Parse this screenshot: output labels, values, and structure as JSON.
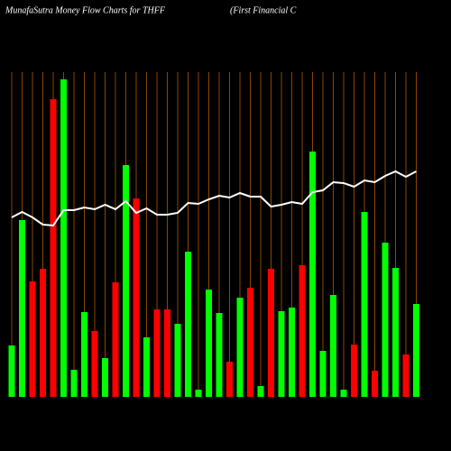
{
  "chart_data": {
    "type": "bar",
    "title": "MunafaSutra  Money Flow  Charts for THFF",
    "subtitle": "(First Financial C",
    "values": [
      57,
      196,
      128,
      142,
      330,
      352,
      30,
      94,
      73,
      43,
      127,
      257,
      220,
      66,
      97,
      97,
      81,
      161,
      8,
      119,
      93,
      39,
      110,
      121,
      12,
      142,
      95,
      99,
      146,
      272,
      51,
      113,
      8,
      58,
      205,
      29,
      171,
      143,
      47,
      103
    ],
    "colors": [
      "#00ff00",
      "#00ff00",
      "#ff0000",
      "#ff0000",
      "#ff0000",
      "#00ff00",
      "#00ff00",
      "#00ff00",
      "#ff0000",
      "#00ff00",
      "#ff0000",
      "#00ff00",
      "#ff0000",
      "#00ff00",
      "#ff0000",
      "#ff0000",
      "#00ff00",
      "#00ff00",
      "#00ff00",
      "#00ff00",
      "#00ff00",
      "#ff0000",
      "#00ff00",
      "#ff0000",
      "#00ff00",
      "#ff0000",
      "#00ff00",
      "#00ff00",
      "#ff0000",
      "#00ff00",
      "#00ff00",
      "#00ff00",
      "#00ff00",
      "#ff0000",
      "#00ff00",
      "#ff0000",
      "#00ff00",
      "#00ff00",
      "#ff0000",
      "#00ff00"
    ],
    "line_values": [
      199,
      205,
      199,
      191,
      190,
      207,
      207,
      210,
      208,
      213,
      208,
      217,
      204,
      209,
      202,
      202,
      204,
      215,
      214,
      219,
      223,
      221,
      226,
      222,
      222,
      211,
      213,
      216,
      214,
      227,
      229,
      238,
      237,
      233,
      240,
      238,
      245,
      250,
      244,
      250
    ],
    "line_color": "#ffffff",
    "grid_color": "#8b4500",
    "ylim": [
      0,
      360
    ]
  }
}
